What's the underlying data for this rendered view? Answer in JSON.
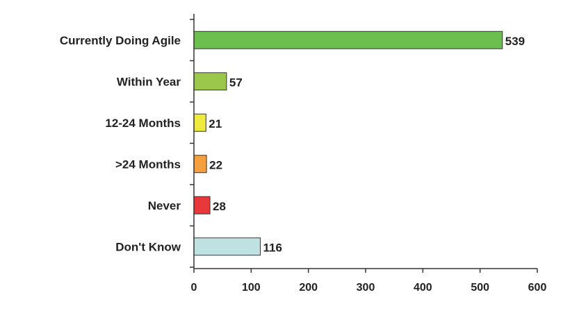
{
  "chart_data": {
    "type": "bar",
    "orientation": "horizontal",
    "categories": [
      "Currently Doing Agile",
      "Within Year",
      "12-24 Months",
      ">24 Months",
      "Never",
      "Don't Know"
    ],
    "values": [
      539,
      57,
      21,
      22,
      28,
      116
    ],
    "value_labels": [
      "539",
      "57",
      "21",
      "22",
      "28",
      "116"
    ],
    "colors": [
      "#6cbf4f",
      "#9bc74a",
      "#f0e93e",
      "#f5a03c",
      "#e8383a",
      "#bfe1e1"
    ],
    "xlim": [
      0,
      600
    ],
    "x_ticks": [
      "0",
      "100",
      "200",
      "300",
      "400",
      "500",
      "600"
    ],
    "x_tick_values": [
      0,
      100,
      200,
      300,
      400,
      500,
      600
    ],
    "grid": false,
    "legend": "none"
  }
}
